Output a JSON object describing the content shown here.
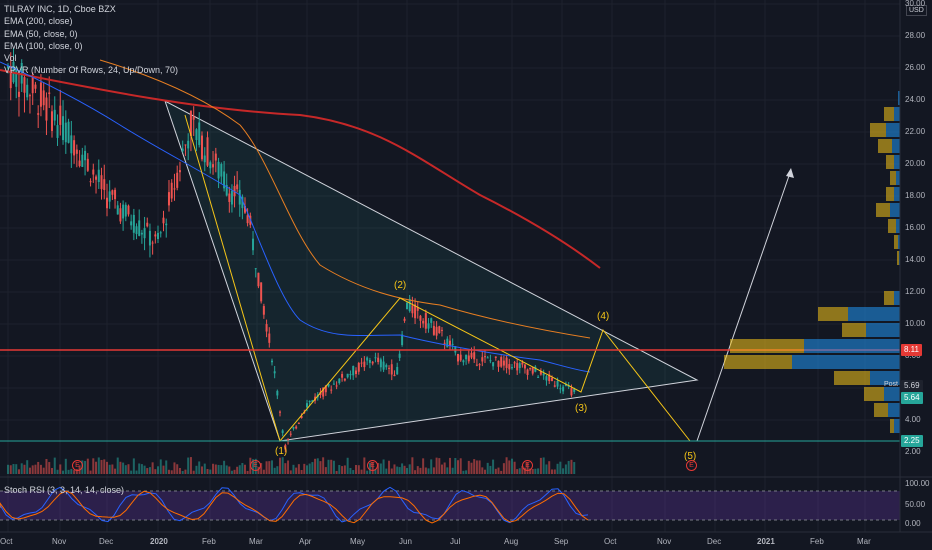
{
  "legend": {
    "symbol": "TILRAY INC, 1D, Cboe BZX",
    "items": [
      "EMA (200, close)",
      "EMA (50, close, 0)",
      "EMA (100, close, 0)",
      "Vol",
      "VPVR (Number Of Rows, 24, Up/Down, 70)"
    ]
  },
  "stoch_label": "Stoch RSI (3, 3, 14, 14, close)",
  "currency": "USD",
  "price_axis": [
    "30.00",
    "28.00",
    "26.00",
    "24.00",
    "22.00",
    "20.00",
    "18.00",
    "16.00",
    "14.00",
    "12.00",
    "10.00",
    "8.00",
    "6.00",
    "4.00",
    "2.00"
  ],
  "stoch_axis": [
    "100.00",
    "50.00",
    "0.00"
  ],
  "time_axis": [
    "Oct",
    "Nov",
    "Dec",
    "2020",
    "Feb",
    "Mar",
    "Apr",
    "May",
    "Jun",
    "Jul",
    "Aug",
    "Sep",
    "Oct",
    "Nov",
    "Dec",
    "2021",
    "Feb",
    "Mar"
  ],
  "price_tags": {
    "resistance": "8.11",
    "post_label": "Post",
    "post": "5.69",
    "last": "5.64",
    "support": "2.25"
  },
  "waves": [
    "(1)",
    "(2)",
    "(3)",
    "(4)",
    "(5)"
  ],
  "earnings_marker": "E",
  "colors": {
    "background": "#131722",
    "up": "#26a69a",
    "down": "#ef5350",
    "ema200": "#c62828",
    "ema50": "#2962ff",
    "ema100": "#e67e22",
    "wave": "#f5c518",
    "resistance": "#e53935",
    "support": "#26a69a",
    "vpvr_up": "#2196f3",
    "vpvr_down": "#f5c518"
  },
  "chart_data": {
    "type": "candlestick",
    "symbol": "TILRAY INC",
    "interval": "1D",
    "ylim": [
      2,
      30
    ],
    "x_range": [
      "2019-10",
      "2021-03"
    ],
    "resistance_level": 8.11,
    "support_level": 2.25,
    "last_price": 5.64,
    "post_price": 5.69,
    "price_path": [
      {
        "date": "2019-10-01",
        "close": 26.0
      },
      {
        "date": "2019-10-20",
        "close": 24.0
      },
      {
        "date": "2019-11-10",
        "close": 21.5
      },
      {
        "date": "2019-12-01",
        "close": 18.0
      },
      {
        "date": "2019-12-31",
        "close": 15.0
      },
      {
        "date": "2020-01-20",
        "close": 22.5
      },
      {
        "date": "2020-02-10",
        "close": 19.0
      },
      {
        "date": "2020-02-25",
        "close": 17.0
      },
      {
        "date": "2020-03-10",
        "close": 8.0
      },
      {
        "date": "2020-03-18",
        "close": 2.3
      },
      {
        "date": "2020-04-01",
        "close": 5.0
      },
      {
        "date": "2020-04-20",
        "close": 6.5
      },
      {
        "date": "2020-05-10",
        "close": 7.8
      },
      {
        "date": "2020-05-25",
        "close": 7.0
      },
      {
        "date": "2020-06-01",
        "close": 11.2
      },
      {
        "date": "2020-06-20",
        "close": 9.5
      },
      {
        "date": "2020-07-01",
        "close": 8.0
      },
      {
        "date": "2020-08-01",
        "close": 7.5
      },
      {
        "date": "2020-08-15",
        "close": 7.0
      },
      {
        "date": "2020-09-10",
        "close": 5.64
      }
    ],
    "projection": [
      {
        "label": "(3)",
        "date": "2020-09-10",
        "value": 5.64
      },
      {
        "label": "(4)",
        "date": "2020-10-01",
        "value": 9.4
      },
      {
        "label": "(5)",
        "date": "2020-11-25",
        "value": 2.25
      },
      {
        "label": "target",
        "date": "2021-01-15",
        "value": 19.5
      }
    ],
    "stoch_rsi_ylim": [
      0,
      100
    ]
  }
}
